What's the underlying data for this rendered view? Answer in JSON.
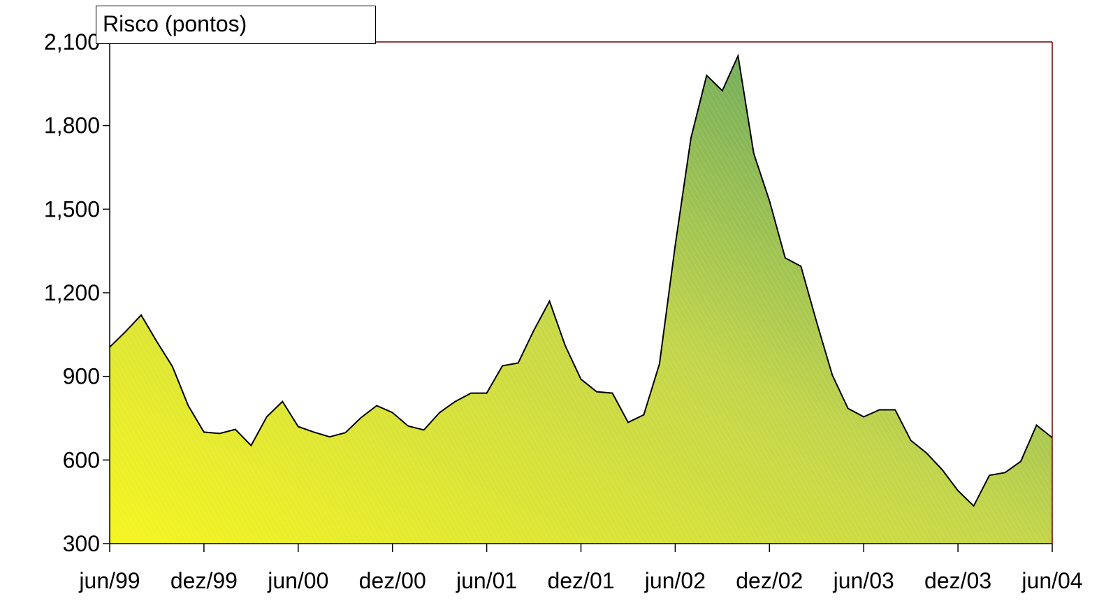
{
  "chart_data": {
    "type": "area",
    "ylabel": "Risco  (pontos)",
    "ylim": [
      300,
      2100
    ],
    "yticks": [
      "300",
      "600",
      "900",
      "1,200",
      "1,500",
      "1,800",
      "2,100"
    ],
    "ytick_values": [
      300,
      600,
      900,
      1200,
      1500,
      1800,
      2100
    ],
    "x_tick_labels": [
      "jun/99",
      "dez/99",
      "jun/00",
      "dez/00",
      "jun/01",
      "dez/01",
      "jun/02",
      "dez/02",
      "jun/03",
      "dez/03",
      "jun/04"
    ],
    "x_tick_month_index": [
      0,
      6,
      12,
      18,
      24,
      30,
      36,
      42,
      48,
      54,
      60
    ],
    "x_start": "jun/99",
    "x_end": "jun/04",
    "grid": false,
    "legend": "top-left",
    "colors": {
      "fill_low": "#f5f51e",
      "fill_mid": "#c3d54a",
      "fill_high": "#4f9a63",
      "line": "#000000",
      "frame": "#6b0000"
    },
    "series": [
      {
        "name": "Risco  (pontos)",
        "values": [
          1005,
          1060,
          1120,
          1025,
          935,
          795,
          700,
          695,
          710,
          652,
          755,
          810,
          720,
          700,
          683,
          698,
          752,
          795,
          770,
          722,
          708,
          770,
          810,
          840,
          840,
          938,
          948,
          1065,
          1170,
          1010,
          890,
          845,
          840,
          735,
          762,
          945,
          1370,
          1755,
          1980,
          1925,
          2050,
          1700,
          1530,
          1325,
          1295,
          1095,
          905,
          785,
          755,
          780,
          780,
          670,
          625,
          565,
          490,
          435,
          545,
          555,
          595,
          725,
          680
        ]
      }
    ]
  }
}
